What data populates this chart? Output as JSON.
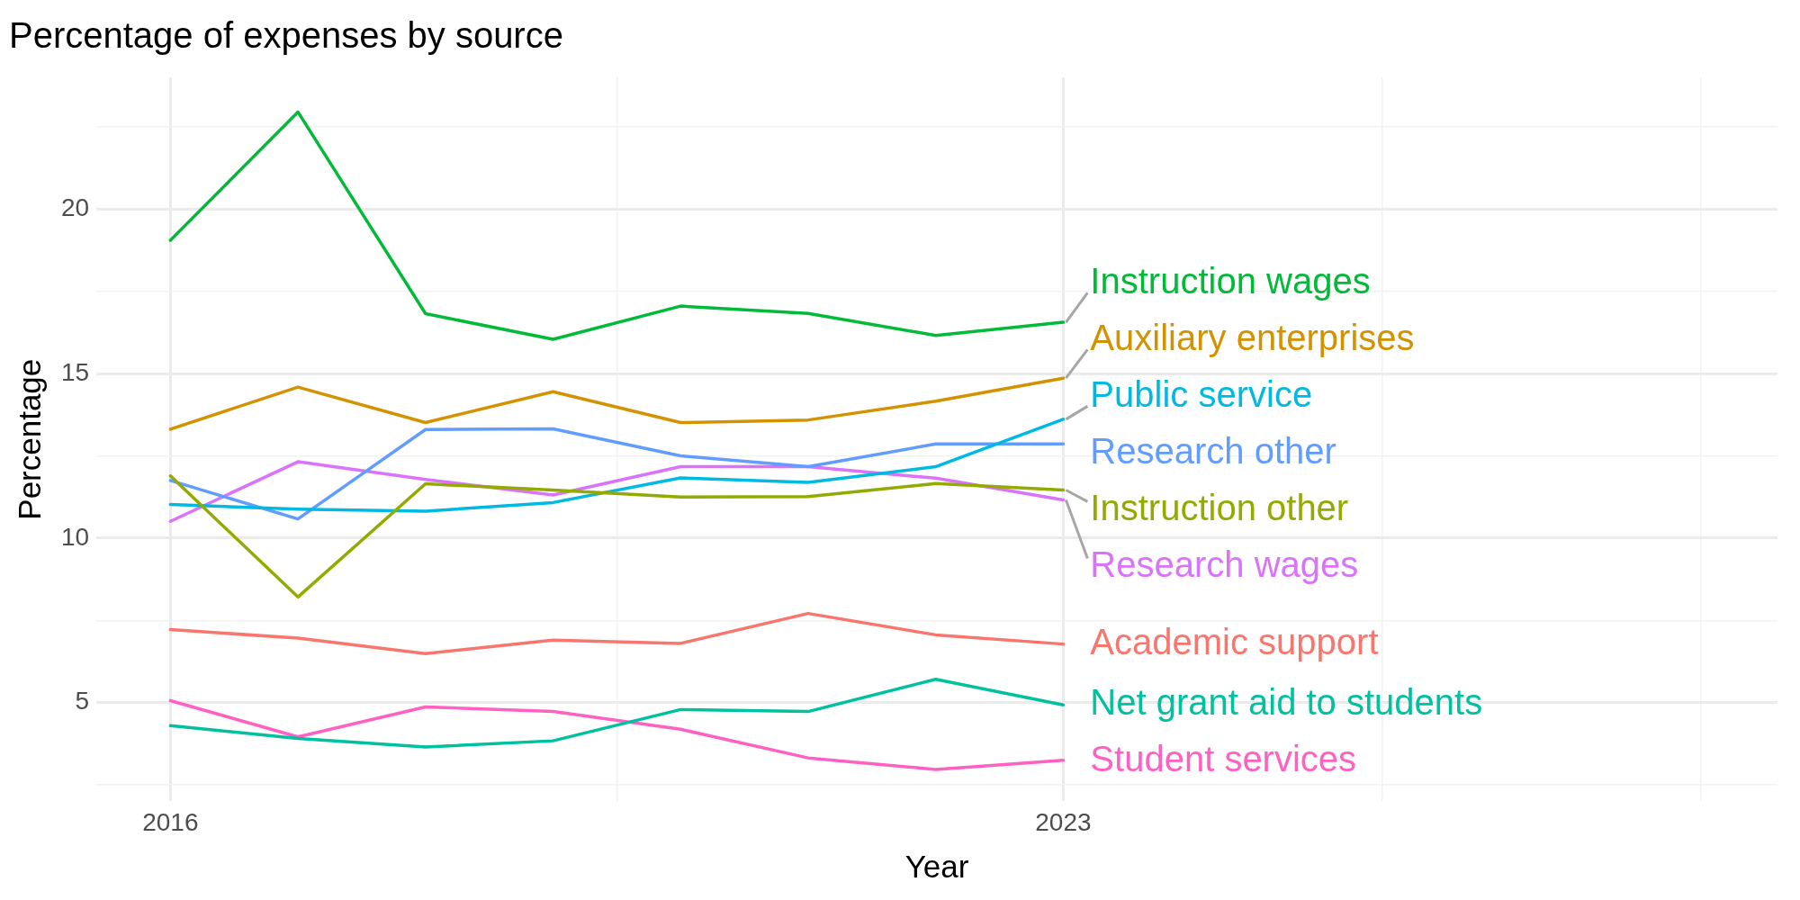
{
  "chart_data": {
    "type": "line",
    "title": "Percentage of expenses by source",
    "xlabel": "Year",
    "ylabel": "Percentage",
    "x": [
      2016,
      2017,
      2018,
      2019,
      2020,
      2021,
      2022,
      2023
    ],
    "xlim": [
      2015.42,
      2028.6
    ],
    "xticks": [
      2016,
      {
        "value": 2019.5,
        "label": null
      },
      2023,
      {
        "value": 2025.5,
        "label": null
      },
      {
        "value": 2028,
        "label": null
      }
    ],
    "ylim": [
      2,
      24
    ],
    "yticks": [
      {
        "value": 2.5,
        "label": null
      },
      5,
      {
        "value": 7.5,
        "label": null
      },
      10,
      {
        "value": 12.5,
        "label": null
      },
      15,
      {
        "value": 17.5,
        "label": null
      },
      20,
      {
        "value": 22.5,
        "label": null
      }
    ],
    "grid": true,
    "legend": false,
    "marker": "none",
    "line_style": "solid",
    "series": [
      {
        "name": "Academic support",
        "color": "#f8766d",
        "values": [
          7.22,
          6.96,
          6.49,
          6.9,
          6.8,
          7.71,
          7.06,
          6.78
        ]
      },
      {
        "name": "Auxiliary enterprises",
        "color": "#d39200",
        "values": [
          13.31,
          14.59,
          13.51,
          14.45,
          13.51,
          13.59,
          14.16,
          14.86
        ]
      },
      {
        "name": "Instruction other",
        "color": "#93aa00",
        "values": [
          11.89,
          8.21,
          11.65,
          11.46,
          11.25,
          11.26,
          11.66,
          11.46
        ]
      },
      {
        "name": "Instruction wages",
        "color": "#00ba38",
        "values": [
          19.05,
          22.95,
          16.82,
          16.04,
          17.05,
          16.83,
          16.16,
          16.56
        ]
      },
      {
        "name": "Net grant aid to students",
        "color": "#00c19f",
        "values": [
          4.3,
          3.91,
          3.65,
          3.84,
          4.79,
          4.73,
          5.71,
          4.93
        ]
      },
      {
        "name": "Public service",
        "color": "#00b9e3",
        "values": [
          11.02,
          10.88,
          10.82,
          11.08,
          11.83,
          11.69,
          12.17,
          13.61
        ]
      },
      {
        "name": "Research other",
        "color": "#619cff",
        "values": [
          11.75,
          10.58,
          13.3,
          13.32,
          12.5,
          12.17,
          12.86,
          12.86
        ]
      },
      {
        "name": "Research wages",
        "color": "#db72fb",
        "values": [
          10.51,
          12.32,
          11.78,
          11.31,
          12.17,
          12.17,
          11.82,
          11.16
        ]
      },
      {
        "name": "Student services",
        "color": "#ff61c3",
        "values": [
          5.06,
          3.96,
          4.87,
          4.73,
          4.19,
          3.32,
          2.97,
          3.25
        ]
      }
    ]
  }
}
